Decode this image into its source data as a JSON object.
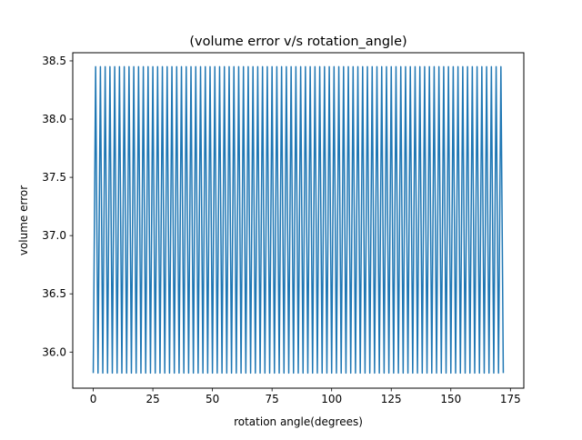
{
  "chart_data": {
    "type": "line",
    "title": "(volume error v/s rotation_angle)",
    "xlabel": "rotation angle(degrees)",
    "ylabel": "volume error",
    "xlim": [
      -8.6,
      180.6
    ],
    "ylim": [
      35.69,
      38.57
    ],
    "xticks": [
      0,
      25,
      50,
      75,
      100,
      125,
      150,
      175
    ],
    "xtick_labels": [
      "0",
      "25",
      "50",
      "75",
      "100",
      "125",
      "150",
      "175"
    ],
    "yticks": [
      36.0,
      36.5,
      37.0,
      37.5,
      38.0,
      38.5
    ],
    "ytick_labels": [
      "36.0",
      "36.5",
      "37.0",
      "37.5",
      "38.0",
      "38.5"
    ],
    "grid": false,
    "series": [
      {
        "name": "volume error",
        "color": "#1f77b4",
        "pattern": {
          "x_start": 0,
          "x_end": 172,
          "x_step": 1,
          "low_value": 35.82,
          "high_value": 38.45,
          "starts_with": "low"
        }
      }
    ]
  },
  "colors": {
    "line": "#1f77b4",
    "axes": "#000000",
    "background": "#ffffff"
  }
}
